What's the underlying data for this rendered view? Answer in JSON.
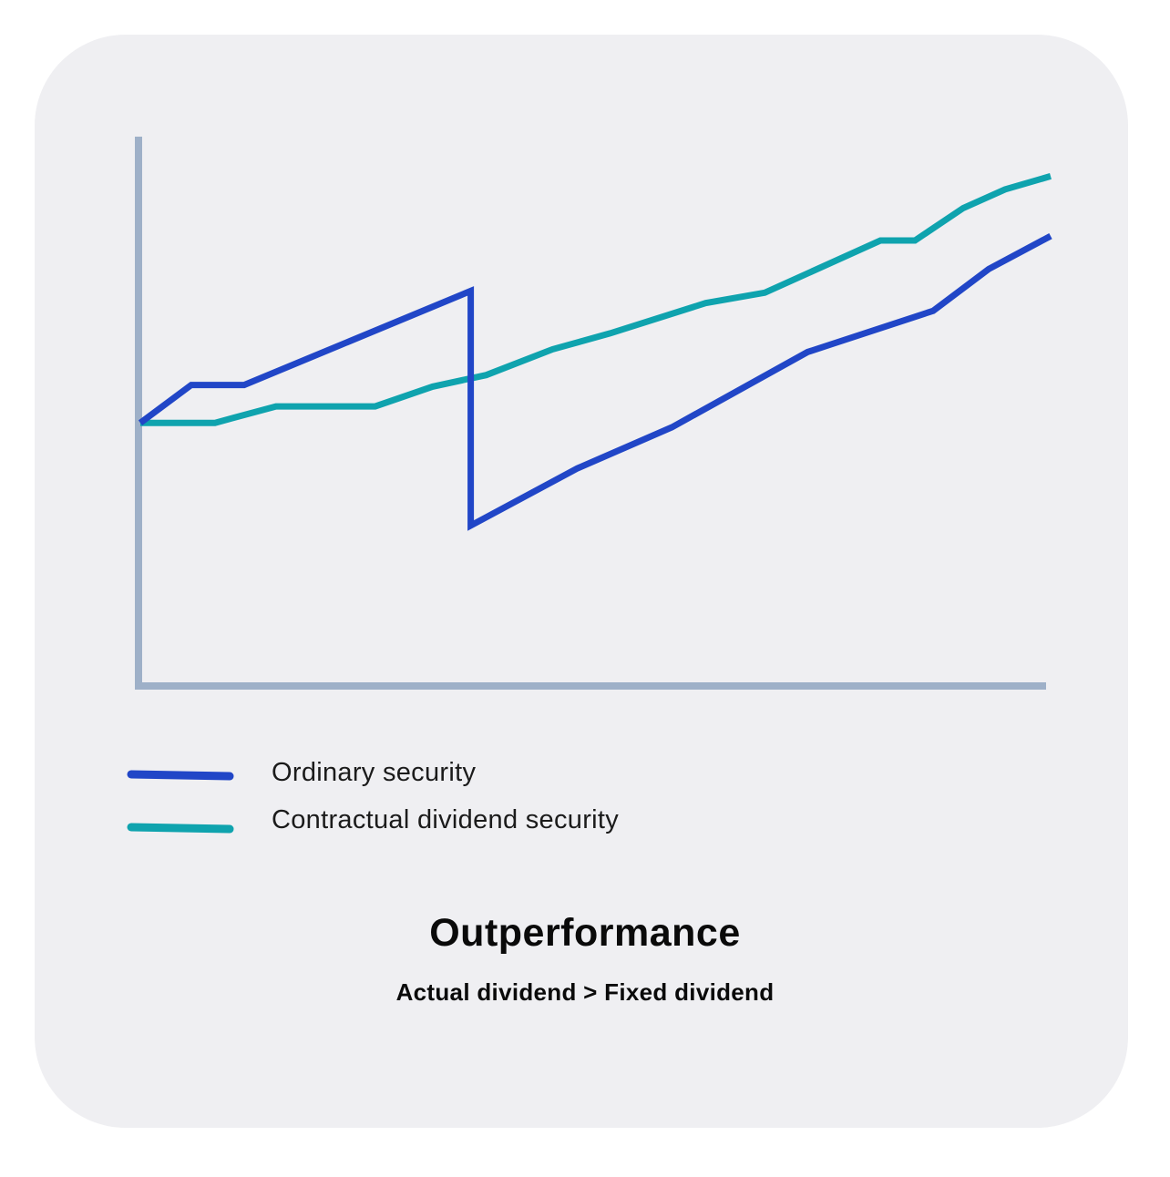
{
  "chart_data": {
    "type": "line",
    "title": "Outperformance",
    "subtitle": "Actual dividend > Fixed dividend",
    "xlabel": "",
    "ylabel": "",
    "grid": false,
    "legend_position": "bottom-left",
    "xlim": [
      0,
      100
    ],
    "ylim": [
      0,
      100
    ],
    "series": [
      {
        "name": "Ordinary security",
        "color": "#2146c7",
        "points": [
          [
            0,
            47.9
          ],
          [
            5.6,
            54.8
          ],
          [
            11.4,
            54.8
          ],
          [
            36.3,
            71.9
          ],
          [
            36.3,
            29.2
          ],
          [
            48.0,
            39.6
          ],
          [
            58.4,
            47.1
          ],
          [
            73.3,
            60.8
          ],
          [
            87.1,
            68.3
          ],
          [
            93.2,
            75.9
          ],
          [
            100,
            81.9
          ]
        ]
      },
      {
        "name": "Contractual dividend security",
        "color": "#0fa3ae",
        "points": [
          [
            0,
            47.9
          ],
          [
            8.2,
            47.9
          ],
          [
            14.9,
            50.9
          ],
          [
            25.8,
            50.9
          ],
          [
            32.1,
            54.5
          ],
          [
            38.0,
            56.6
          ],
          [
            45.3,
            61.3
          ],
          [
            51.6,
            64.2
          ],
          [
            62.1,
            69.7
          ],
          [
            68.6,
            71.6
          ],
          [
            81.3,
            81.1
          ],
          [
            85.1,
            81.1
          ],
          [
            90.4,
            87.0
          ],
          [
            95.0,
            90.4
          ],
          [
            100,
            92.8
          ]
        ]
      }
    ]
  },
  "colors": {
    "card_background": "#efeff2",
    "axis": "#9eb0c8",
    "ordinary": "#2146c7",
    "contractual": "#0fa3ae"
  }
}
